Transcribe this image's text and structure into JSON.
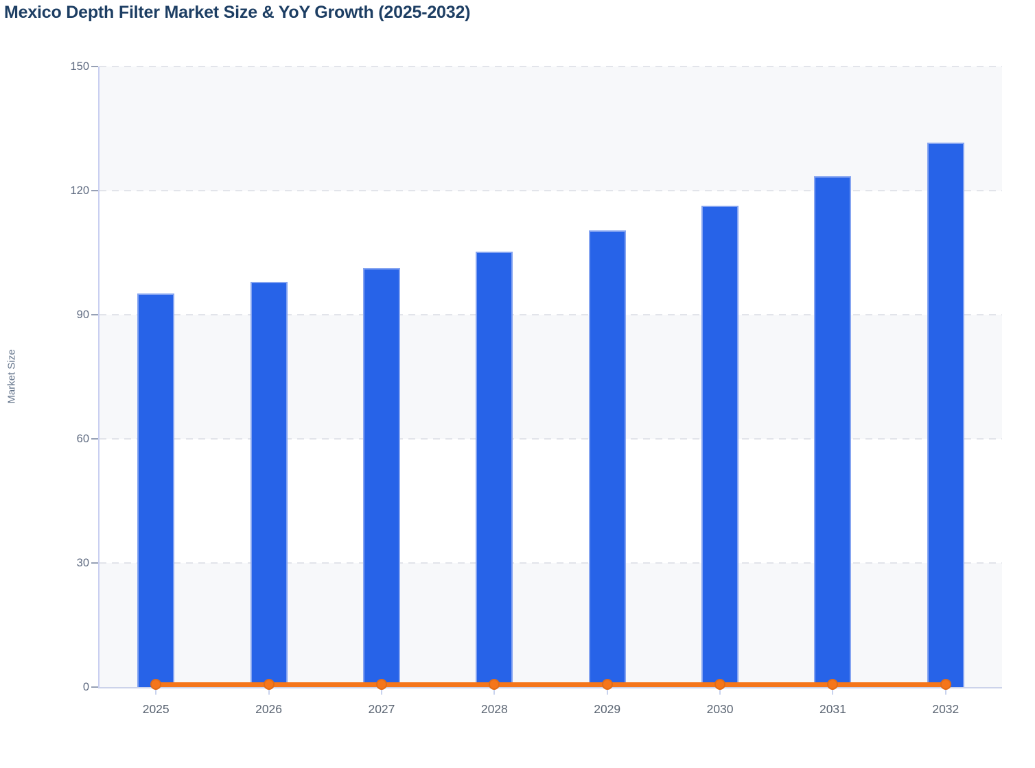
{
  "title": "Mexico Depth Filter Market Size & YoY Growth (2025-2032)",
  "colors": {
    "title": "#1d3e63",
    "bar": "#2763e8",
    "bar_border": "#9db4f3",
    "line": "#f5761b",
    "marker": "#f5761b",
    "axis_title": "#64748b",
    "ytick_label": "#5e6a80",
    "xtick_label": "#5a6472",
    "grid": "#e2e4ea",
    "band_gray": "#f7f8fa",
    "band_white": "#ffffff",
    "y_axis_line": "#c9cff1",
    "x_axis_line": "#ccd3ea"
  },
  "chart_data": {
    "type": "bar",
    "title": "Mexico Depth Filter Market Size & YoY Growth (2025-2032)",
    "categories": [
      "2025",
      "2026",
      "2027",
      "2028",
      "2029",
      "2030",
      "2031",
      "2032"
    ],
    "series": [
      {
        "name": "Market Size",
        "type": "bar",
        "color": "#2763e8",
        "values": [
          95.2,
          97.9,
          101.3,
          105.3,
          110.4,
          116.4,
          123.5,
          131.6
        ]
      },
      {
        "name": "YoY Growth",
        "type": "line",
        "color": "#f5761b",
        "values": [
          0,
          0,
          0,
          0,
          0,
          0,
          0,
          0
        ],
        "note": "line is plotted flat at ~0 against the 0-150 Market Size axis, with a round marker at each year"
      }
    ],
    "xlabel": "",
    "ylabel": "Market Size",
    "ylim": [
      0,
      150
    ],
    "yticks": [
      0,
      30,
      60,
      90,
      120,
      150
    ],
    "grid": "horizontal-dashed",
    "legend": "none",
    "background_bands": "alternating gray/white horizontal bands between gridlines, gray topmost (120-150)"
  }
}
